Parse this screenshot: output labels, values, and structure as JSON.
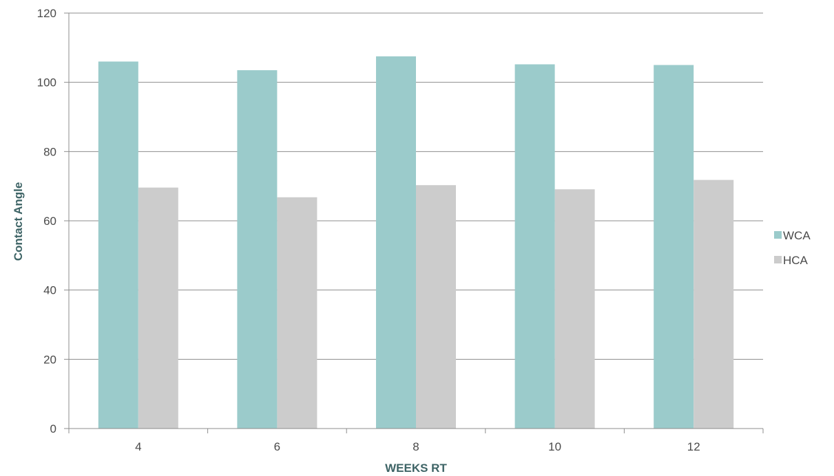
{
  "chart_data": {
    "type": "bar",
    "title": "",
    "xlabel": "WEEKS RT",
    "ylabel": "Contact Angle",
    "categories": [
      "4",
      "6",
      "8",
      "10",
      "12"
    ],
    "series": [
      {
        "name": "WCA",
        "color": "#9bcbcb",
        "values": [
          106,
          103.5,
          107.5,
          105.2,
          105
        ]
      },
      {
        "name": "HCA",
        "color": "#cccccc",
        "values": [
          69.6,
          66.8,
          70.3,
          69.1,
          71.8
        ]
      }
    ],
    "ylim": [
      0,
      120
    ],
    "yticks": [
      "0",
      "20",
      "40",
      "60",
      "80",
      "100",
      "120"
    ],
    "grid": true,
    "legend_position": "right"
  }
}
